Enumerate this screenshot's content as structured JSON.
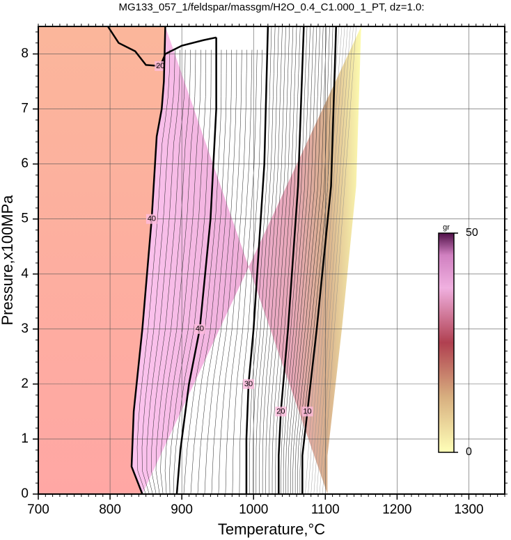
{
  "chart_data": {
    "type": "contour",
    "title": "MG133_057_1/feldspar/massgm/H2O_0.4_C1.000_1_PT, dz=1.0:",
    "xlabel": "Temperature,°C",
    "ylabel": "Pressure,x100MPa",
    "xlim": [
      700,
      1350
    ],
    "ylim": [
      0,
      8.5
    ],
    "xticks": [
      700,
      800,
      900,
      1000,
      1100,
      1200,
      1300
    ],
    "yticks": [
      0,
      1,
      2,
      3,
      4,
      5,
      6,
      7,
      8
    ],
    "grid": true,
    "contours": [
      {
        "level": 20,
        "x": [
          797,
          812,
          835,
          850,
          870,
          877,
          900,
          930,
          948
        ],
        "y": [
          8.5,
          8.2,
          8.05,
          7.8,
          7.78,
          8.0,
          8.15,
          8.25,
          8.3
        ]
      },
      {
        "level": 40,
        "x": [
          845,
          830,
          833,
          845,
          858,
          865,
          872,
          875,
          877
        ],
        "y": [
          0,
          0.5,
          1.5,
          3,
          5,
          6.5,
          7,
          7.5,
          8.5
        ]
      },
      {
        "level": 40,
        "x": [
          948,
          948,
          940,
          925,
          910,
          898,
          893
        ],
        "y": [
          8.3,
          7,
          5,
          3,
          2,
          0.8,
          0
        ]
      },
      {
        "level": 30,
        "x": [
          1020,
          1015,
          1000,
          993,
          990,
          990
        ],
        "y": [
          8.5,
          6,
          3,
          2,
          1,
          0
        ]
      },
      {
        "level": 20,
        "x": [
          1070,
          1062,
          1048,
          1038,
          1035,
          1035
        ],
        "y": [
          8.5,
          5.6,
          3,
          1.5,
          0.7,
          0
        ]
      },
      {
        "level": 10,
        "x": [
          1115,
          1108,
          1088,
          1075,
          1068,
          1068
        ],
        "y": [
          8.5,
          5.6,
          3,
          1.5,
          0.7,
          0
        ]
      }
    ],
    "colorbar": {
      "label": "gr",
      "lim": [
        0,
        50
      ],
      "ticks": [
        0,
        50
      ]
    }
  }
}
